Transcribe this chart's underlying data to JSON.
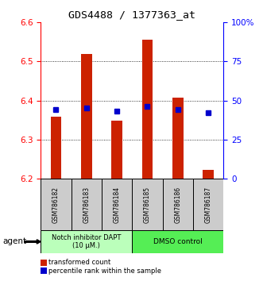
{
  "title": "GDS4488 / 1377363_at",
  "samples": [
    "GSM786182",
    "GSM786183",
    "GSM786184",
    "GSM786185",
    "GSM786186",
    "GSM786187"
  ],
  "red_values": [
    6.358,
    6.52,
    6.348,
    6.555,
    6.408,
    6.222
  ],
  "blue_pct": [
    44.0,
    45.0,
    43.0,
    46.0,
    44.0,
    42.0
  ],
  "baseline": 6.2,
  "ylim_left": [
    6.2,
    6.6
  ],
  "ylim_right": [
    0,
    100
  ],
  "yticks_left": [
    6.2,
    6.3,
    6.4,
    6.5,
    6.6
  ],
  "yticks_right": [
    0,
    25,
    50,
    75,
    100
  ],
  "ytick_right_labels": [
    "0",
    "25",
    "50",
    "75",
    "100%"
  ],
  "group1_label": "Notch inhibitor DAPT\n(10 μM.)",
  "group2_label": "DMSO control",
  "group1_color": "#bbffbb",
  "group2_color": "#55ee55",
  "agent_label": "agent",
  "legend1": "transformed count",
  "legend2": "percentile rank within the sample",
  "bar_color": "#cc2200",
  "dot_color": "#0000cc",
  "bar_width": 0.35,
  "sample_box_color": "#cccccc"
}
